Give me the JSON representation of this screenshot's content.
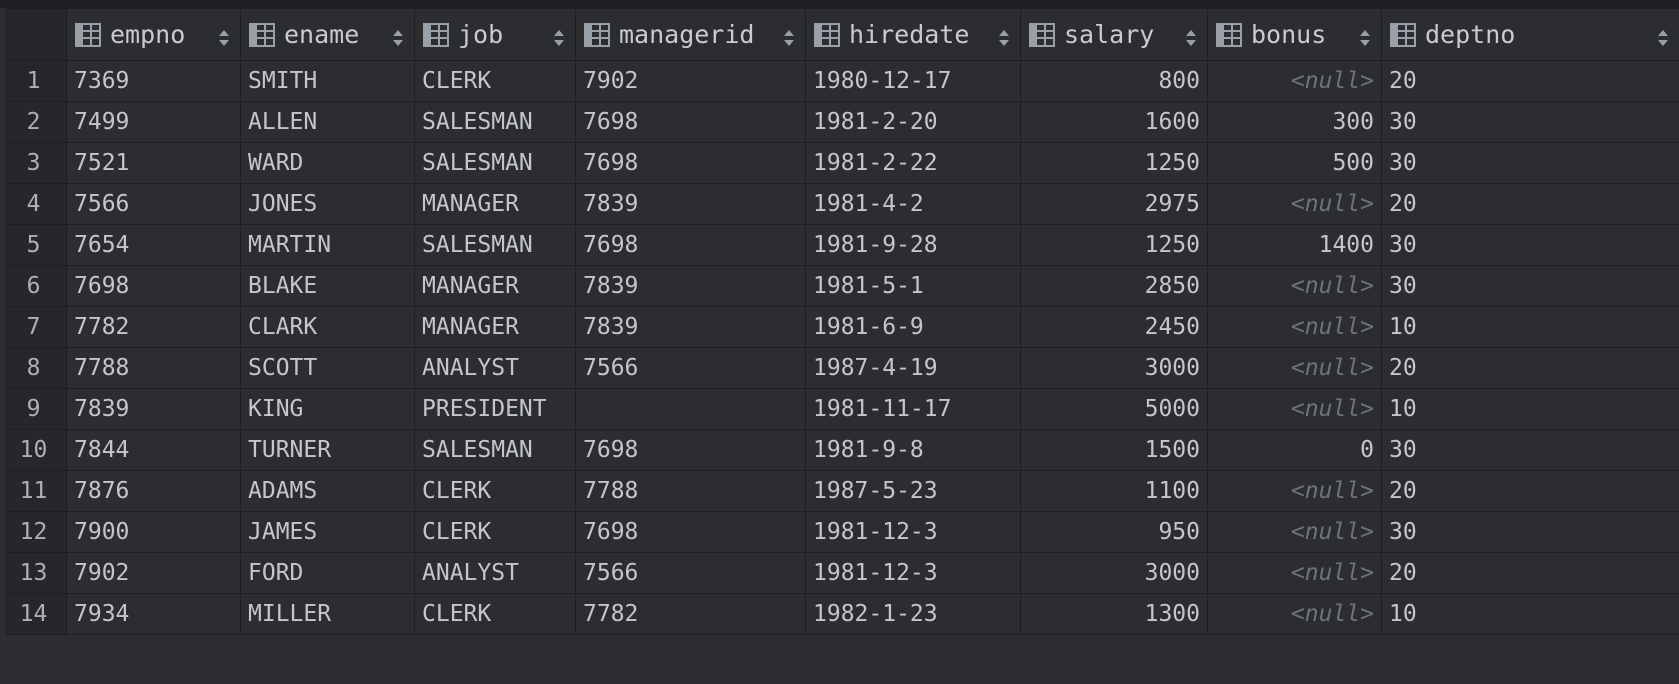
{
  "columns": [
    "empno",
    "ename",
    "job",
    "managerid",
    "hiredate",
    "salary",
    "bonus",
    "deptno"
  ],
  "icons": {
    "column": "table-column-icon",
    "sort": "sort-arrows-icon"
  },
  "null_text": "<null>",
  "rows": [
    {
      "n": "1",
      "empno": "7369",
      "ename": "SMITH",
      "job": "CLERK",
      "managerid": "7902",
      "hiredate": "1980-12-17",
      "salary": "800",
      "bonus": "<null>",
      "deptno": "20"
    },
    {
      "n": "2",
      "empno": "7499",
      "ename": "ALLEN",
      "job": "SALESMAN",
      "managerid": "7698",
      "hiredate": "1981-2-20",
      "salary": "1600",
      "bonus": "300",
      "deptno": "30"
    },
    {
      "n": "3",
      "empno": "7521",
      "ename": "WARD",
      "job": "SALESMAN",
      "managerid": "7698",
      "hiredate": "1981-2-22",
      "salary": "1250",
      "bonus": "500",
      "deptno": "30"
    },
    {
      "n": "4",
      "empno": "7566",
      "ename": "JONES",
      "job": "MANAGER",
      "managerid": "7839",
      "hiredate": "1981-4-2",
      "salary": "2975",
      "bonus": "<null>",
      "deptno": "20"
    },
    {
      "n": "5",
      "empno": "7654",
      "ename": "MARTIN",
      "job": "SALESMAN",
      "managerid": "7698",
      "hiredate": "1981-9-28",
      "salary": "1250",
      "bonus": "1400",
      "deptno": "30"
    },
    {
      "n": "6",
      "empno": "7698",
      "ename": "BLAKE",
      "job": "MANAGER",
      "managerid": "7839",
      "hiredate": "1981-5-1",
      "salary": "2850",
      "bonus": "<null>",
      "deptno": "30"
    },
    {
      "n": "7",
      "empno": "7782",
      "ename": "CLARK",
      "job": "MANAGER",
      "managerid": "7839",
      "hiredate": "1981-6-9",
      "salary": "2450",
      "bonus": "<null>",
      "deptno": "10"
    },
    {
      "n": "8",
      "empno": "7788",
      "ename": "SCOTT",
      "job": "ANALYST",
      "managerid": "7566",
      "hiredate": "1987-4-19",
      "salary": "3000",
      "bonus": "<null>",
      "deptno": "20"
    },
    {
      "n": "9",
      "empno": "7839",
      "ename": "KING",
      "job": "PRESIDENT",
      "managerid": "",
      "hiredate": "1981-11-17",
      "salary": "5000",
      "bonus": "<null>",
      "deptno": "10"
    },
    {
      "n": "10",
      "empno": "7844",
      "ename": "TURNER",
      "job": "SALESMAN",
      "managerid": "7698",
      "hiredate": "1981-9-8",
      "salary": "1500",
      "bonus": "0",
      "deptno": "30"
    },
    {
      "n": "11",
      "empno": "7876",
      "ename": "ADAMS",
      "job": "CLERK",
      "managerid": "7788",
      "hiredate": "1987-5-23",
      "salary": "1100",
      "bonus": "<null>",
      "deptno": "20"
    },
    {
      "n": "12",
      "empno": "7900",
      "ename": "JAMES",
      "job": "CLERK",
      "managerid": "7698",
      "hiredate": "1981-12-3",
      "salary": "950",
      "bonus": "<null>",
      "deptno": "30"
    },
    {
      "n": "13",
      "empno": "7902",
      "ename": "FORD",
      "job": "ANALYST",
      "managerid": "7566",
      "hiredate": "1981-12-3",
      "salary": "3000",
      "bonus": "<null>",
      "deptno": "20"
    },
    {
      "n": "14",
      "empno": "7934",
      "ename": "MILLER",
      "job": "CLERK",
      "managerid": "7782",
      "hiredate": "1982-1-23",
      "salary": "1300",
      "bonus": "<null>",
      "deptno": "10"
    }
  ]
}
